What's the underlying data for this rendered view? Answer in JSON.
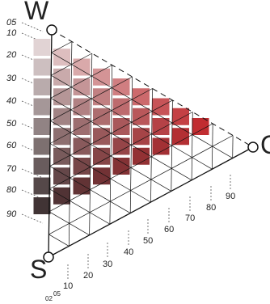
{
  "vertices": {
    "white": "W",
    "black": "S",
    "chromatic": "C"
  },
  "whiteness_scale": [
    "05",
    "10",
    "20",
    "30",
    "40",
    "50",
    "60",
    "70",
    "80",
    "90"
  ],
  "chromaticness_scale": [
    "10",
    "20",
    "30",
    "40",
    "50",
    "60",
    "70",
    "80",
    "90"
  ],
  "bottom_small_labels": [
    "02",
    "05"
  ],
  "colors": {
    "white_pole": "#eeeaea",
    "black_pole": "#2d2a2b",
    "full_chroma": "#c5262b",
    "line": "#111111"
  }
}
